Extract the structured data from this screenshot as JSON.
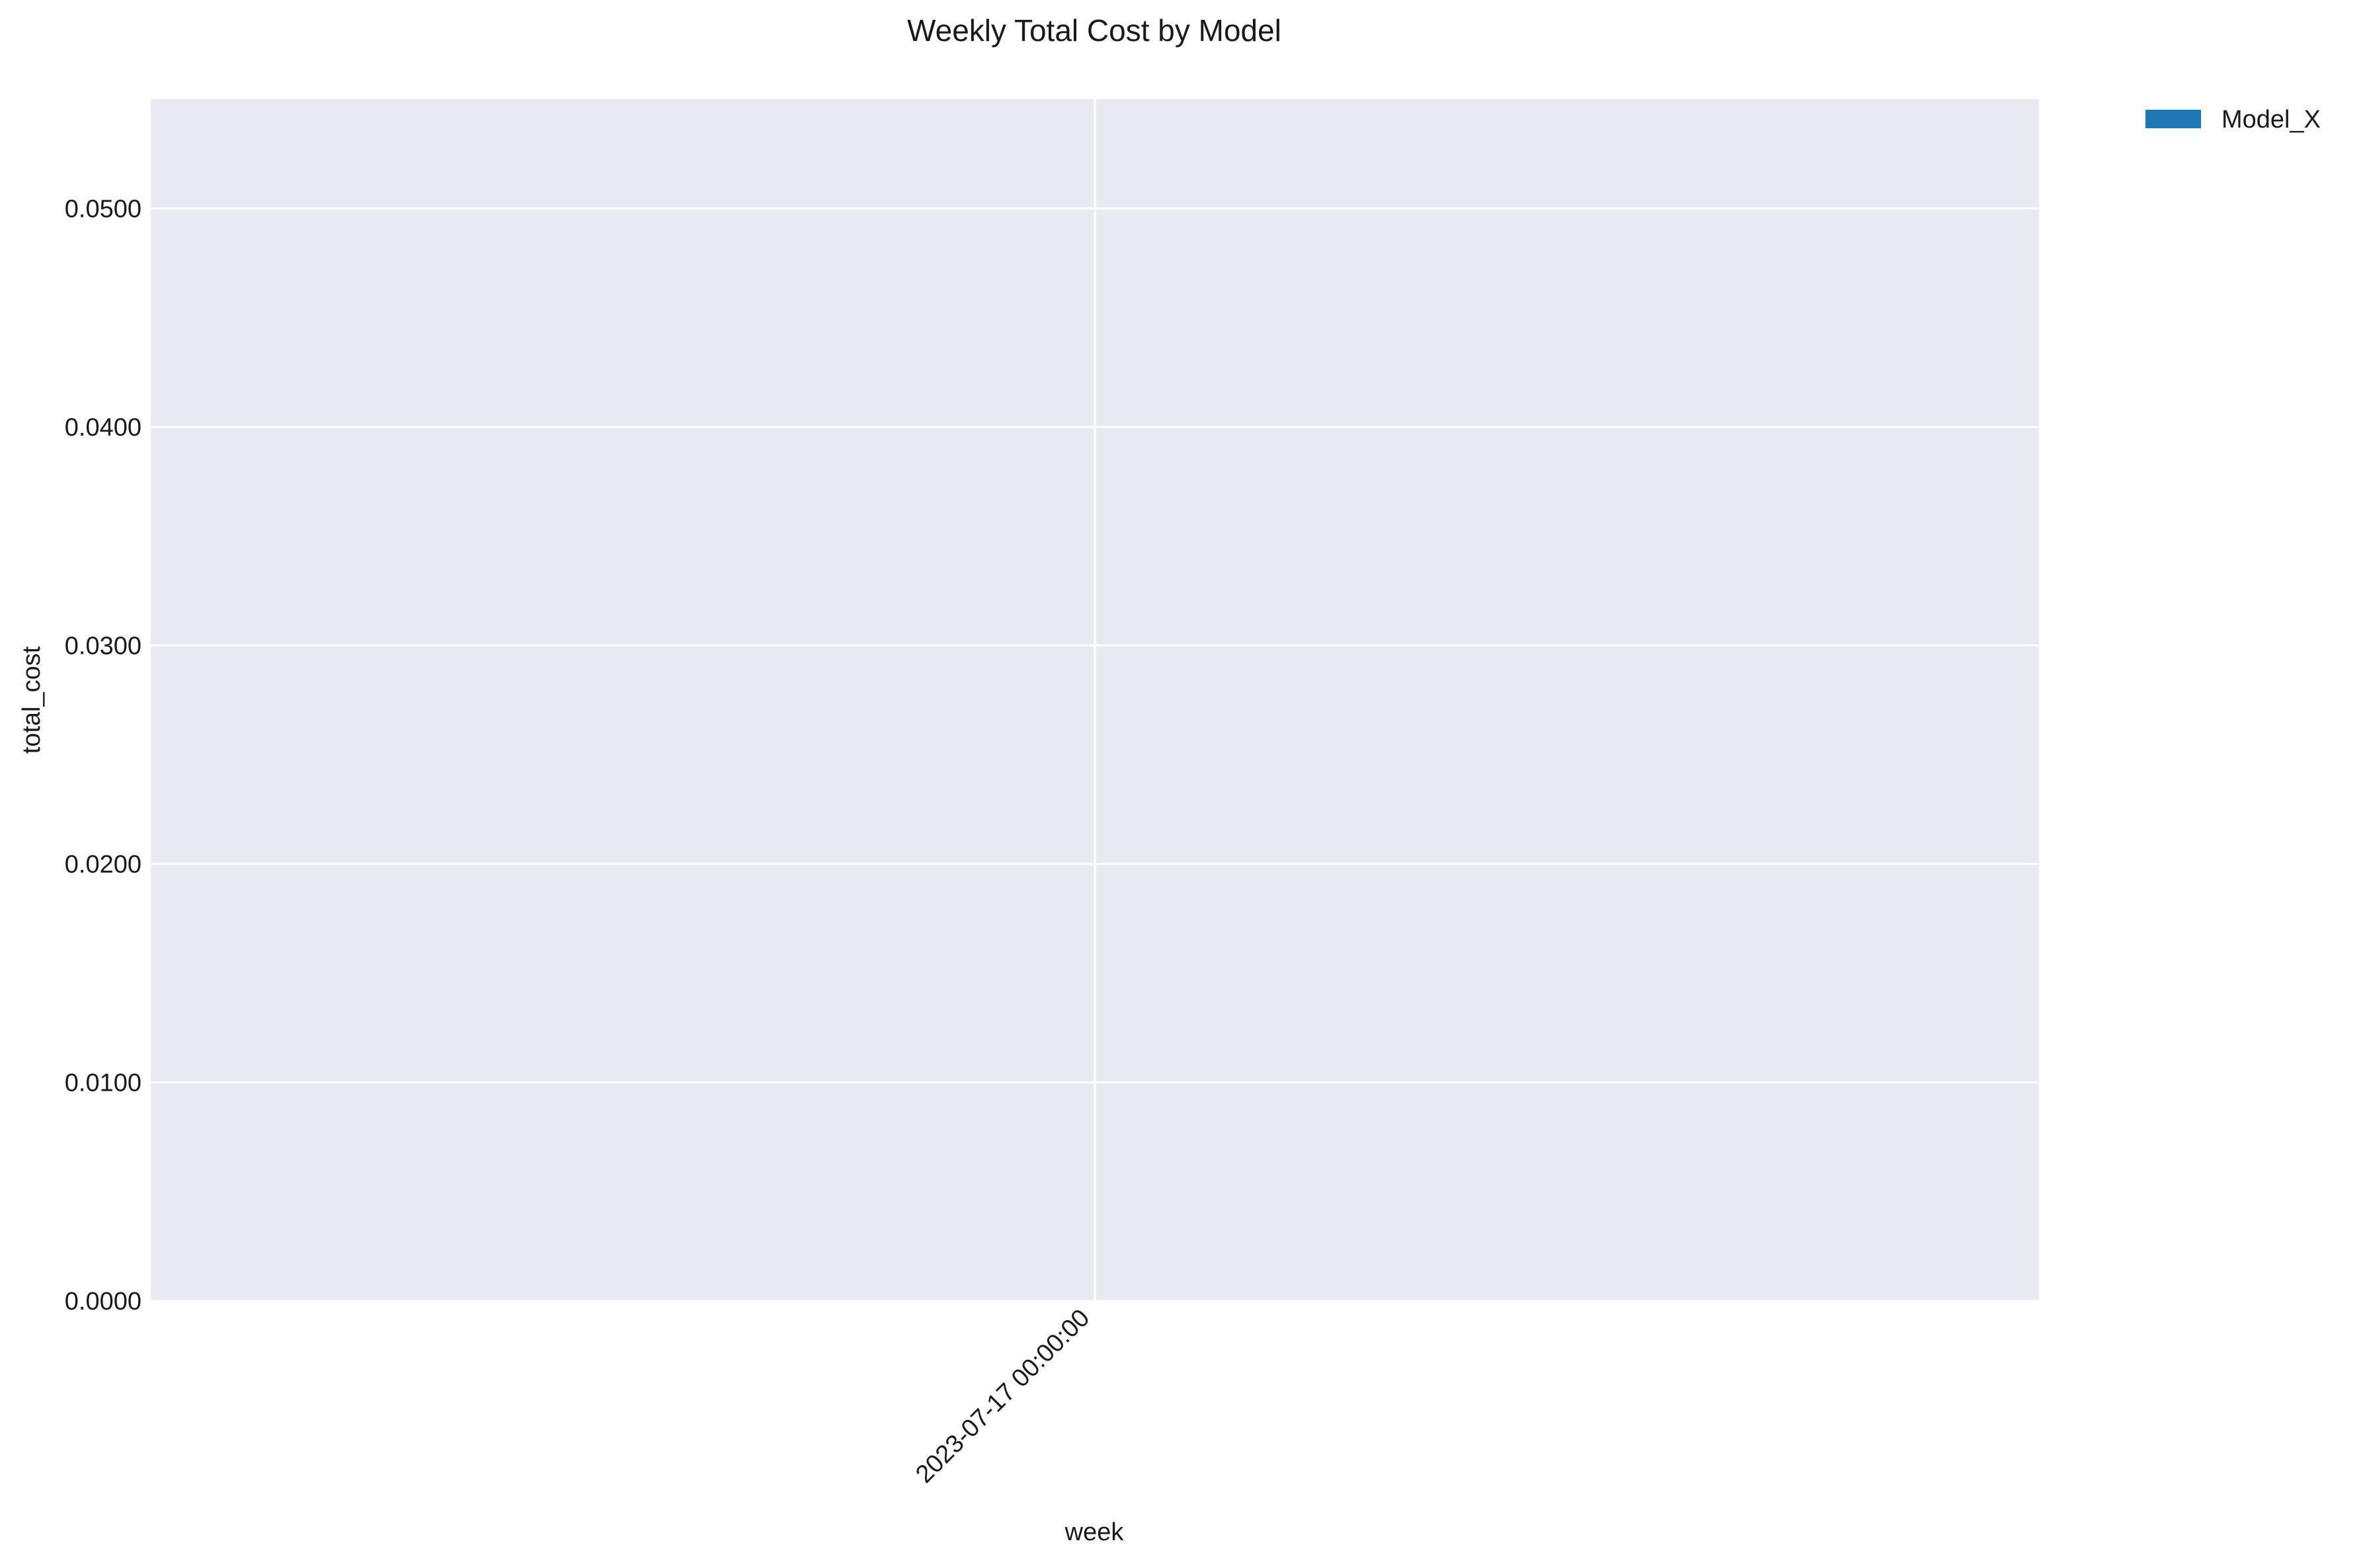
{
  "chart_data": {
    "type": "bar",
    "title": "Weekly Total Cost by Model",
    "xlabel": "week",
    "ylabel": "total_cost",
    "categories": [
      "2023-07-17 00:00:00"
    ],
    "series": [
      {
        "name": "Model_X",
        "values": [
          0
        ],
        "color": "#1f77b4"
      }
    ],
    "ylim": [
      0,
      0.055
    ],
    "yticks": [
      "0.0000",
      "0.0100",
      "0.0200",
      "0.0300",
      "0.0400",
      "0.0500"
    ],
    "grid": true,
    "legend_position": "top-right outside",
    "colors": {
      "plot_background": "#e9e9f1",
      "grid": "#ffffff"
    }
  }
}
